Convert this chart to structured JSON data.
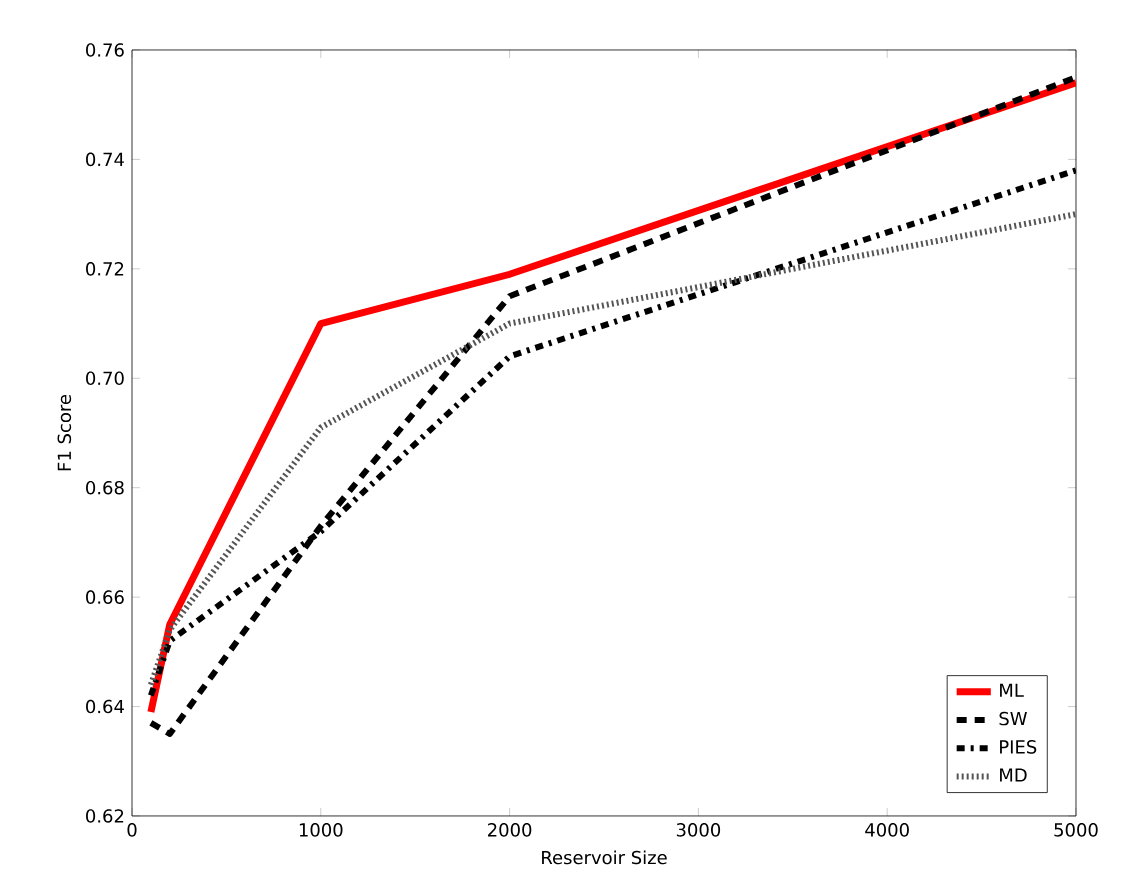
{
  "chart_data": {
    "type": "line",
    "xlabel": "Reservoir Size",
    "ylabel": "F1 Score",
    "x": [
      100,
      200,
      1000,
      2000,
      5000
    ],
    "series": [
      {
        "name": "ML",
        "color": "#ff0000",
        "line_style": "solid",
        "values": [
          0.639,
          0.655,
          0.71,
          0.719,
          0.754
        ]
      },
      {
        "name": "SW",
        "color": "#000000",
        "line_style": "dashed",
        "values": [
          0.637,
          0.635,
          0.673,
          0.715,
          0.755
        ]
      },
      {
        "name": "PIES",
        "color": "#000000",
        "line_style": "dashdot",
        "values": [
          0.642,
          0.652,
          0.672,
          0.704,
          0.738
        ]
      },
      {
        "name": "MD",
        "color": "#555555",
        "line_style": "dotted",
        "values": [
          0.644,
          0.654,
          0.691,
          0.71,
          0.73
        ]
      }
    ],
    "xlim": [
      0,
      5000
    ],
    "xticks": [
      0,
      1000,
      2000,
      3000,
      4000,
      5000
    ],
    "ylim": [
      0.62,
      0.76
    ],
    "yticks": [
      0.62,
      0.64,
      0.66,
      0.68,
      {
        "value": 0.7,
        "label": "0.70"
      },
      0.72,
      0.74,
      0.76
    ],
    "legend": "bottom right",
    "grid": false,
    "marker": "none"
  }
}
